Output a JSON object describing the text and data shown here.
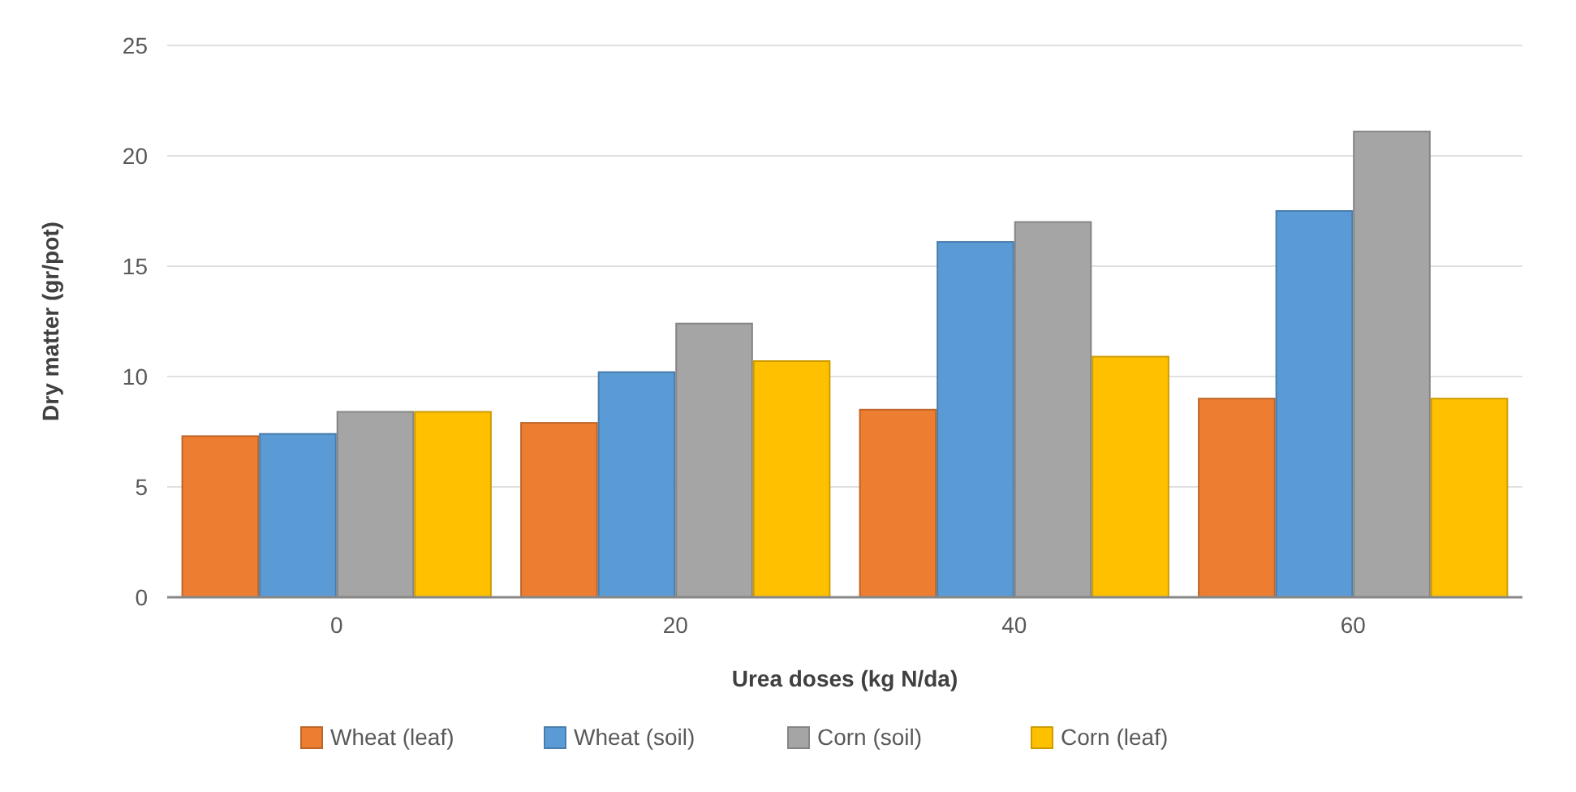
{
  "chart_data": {
    "type": "bar",
    "xlabel": "Urea doses (kg N/da)",
    "ylabel": "Dry matter (gr/pot)",
    "categories": [
      "0",
      "20",
      "40",
      "60"
    ],
    "series": [
      {
        "name": "Wheat (leaf)",
        "color": "#ed7d31",
        "values": [
          7.3,
          7.9,
          8.5,
          9.0
        ]
      },
      {
        "name": "Wheat (soil)",
        "color": "#5b9bd5",
        "values": [
          7.4,
          10.2,
          16.1,
          17.5
        ]
      },
      {
        "name": "Corn (soil)",
        "color": "#a5a5a5",
        "values": [
          8.4,
          12.4,
          17.0,
          21.1
        ]
      },
      {
        "name": "Corn (leaf)",
        "color": "#ffc000",
        "values": [
          8.4,
          10.7,
          10.9,
          9.0
        ]
      }
    ],
    "ylim": [
      0,
      25
    ],
    "yticks": [
      0,
      5,
      10,
      15,
      20,
      25
    ],
    "grid": "y",
    "legend": "bottom"
  }
}
